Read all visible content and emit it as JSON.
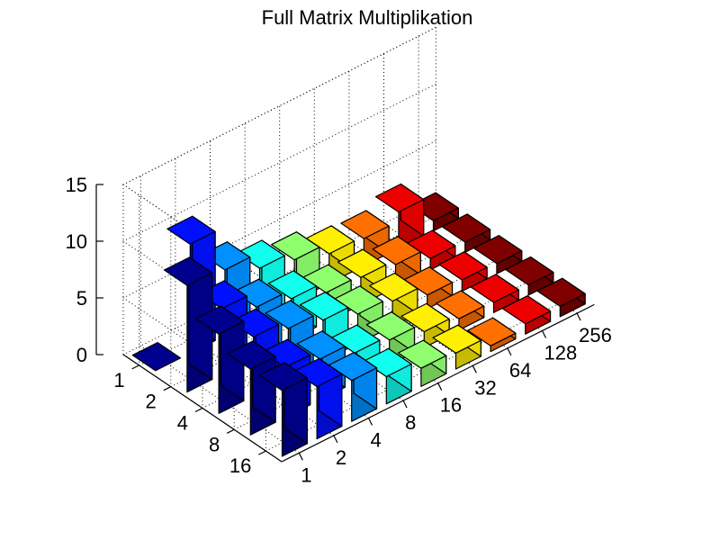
{
  "chart_data": {
    "type": "bar3",
    "title": "Full Matrix Multiplikation",
    "xlabel": "",
    "ylabel": "",
    "zlabel": "",
    "rows": [
      "1",
      "2",
      "4",
      "8",
      "16"
    ],
    "columns": [
      "1",
      "2",
      "4",
      "8",
      "16",
      "32",
      "64",
      "128",
      "256"
    ],
    "zticks": [
      "0",
      "5",
      "10",
      "15"
    ],
    "zlim": [
      0,
      15
    ],
    "grid": true,
    "colormap": "jet",
    "column_colors": [
      "#00008f",
      "#0010ff",
      "#0090ff",
      "#10ffef",
      "#8fff70",
      "#ffef00",
      "#ff7000",
      "#ef0000",
      "#800000"
    ],
    "values": [
      [
        0.0,
        9.6,
        5.8,
        4.4,
        3.6,
        2.6,
        2.4,
        3.2,
        0.9
      ],
      [
        9.4,
        5.8,
        4.4,
        3.6,
        2.6,
        2.4,
        2.0,
        1.0,
        0.9
      ],
      [
        7.0,
        5.2,
        4.4,
        3.6,
        2.6,
        2.2,
        1.2,
        1.0,
        0.9
      ],
      [
        5.8,
        4.4,
        3.6,
        2.6,
        2.2,
        1.4,
        1.0,
        0.9,
        0.9
      ],
      [
        5.8,
        4.6,
        3.6,
        2.4,
        1.6,
        1.4,
        0.5,
        0.9,
        0.9
      ]
    ]
  }
}
